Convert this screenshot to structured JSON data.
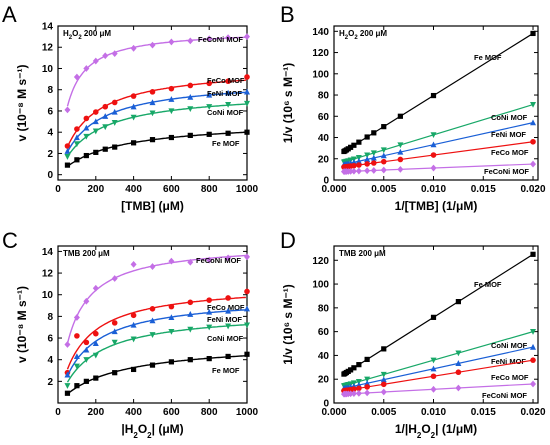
{
  "colors": {
    "Fe MOF": "#000000",
    "FeCo MOF": "#ee1111",
    "FeNi MOF": "#1a5fd6",
    "CoNi MOF": "#18a868",
    "FeCoNi MOF": "#c46fe6"
  },
  "chart_data": [
    {
      "panel": "A",
      "type": "scatter",
      "condition_label": "H2O2 200 μM",
      "xlabel": "[TMB] (μM)",
      "ylabel": "v (10⁻⁸ M s⁻¹)",
      "xlim": [
        0,
        1000
      ],
      "ylim": [
        -0.5,
        14
      ],
      "xticks": [
        0,
        200,
        400,
        600,
        800,
        1000
      ],
      "yticks": [
        0,
        2,
        4,
        6,
        8,
        10,
        12,
        14
      ],
      "x": [
        50,
        100,
        150,
        200,
        250,
        300,
        400,
        500,
        600,
        700,
        800,
        900,
        1000
      ],
      "fit": "michaelis-menten",
      "series": [
        {
          "name": "FeCoNi MOF",
          "marker": "diamond",
          "values": [
            6.1,
            9.2,
            10.0,
            10.7,
            11.2,
            11.4,
            11.9,
            12.2,
            12.5,
            12.6,
            12.8,
            12.9,
            13.0
          ]
        },
        {
          "name": "FeCo MOF",
          "marker": "circle",
          "values": [
            2.7,
            4.3,
            5.3,
            5.9,
            6.4,
            6.8,
            7.4,
            7.8,
            8.1,
            8.4,
            8.6,
            8.8,
            9.2
          ]
        },
        {
          "name": "FeNi MOF",
          "marker": "triangle-up",
          "values": [
            2.2,
            3.5,
            4.4,
            5.0,
            5.5,
            5.9,
            6.4,
            6.8,
            7.1,
            7.3,
            7.5,
            7.7,
            7.8
          ]
        },
        {
          "name": "CoNi MOF",
          "marker": "triangle-down",
          "values": [
            1.7,
            2.9,
            3.6,
            4.1,
            4.5,
            4.9,
            5.4,
            5.8,
            6.0,
            6.2,
            6.4,
            6.6,
            6.7
          ]
        },
        {
          "name": "Fe MOF",
          "marker": "square",
          "values": [
            0.9,
            1.4,
            1.8,
            2.1,
            2.4,
            2.6,
            3.0,
            3.3,
            3.5,
            3.7,
            3.8,
            3.9,
            4.0
          ]
        }
      ]
    },
    {
      "panel": "B",
      "type": "line",
      "condition_label": "H2O2 200 μM",
      "xlabel": "1/[TMB] (1/μM)",
      "ylabel": "1/v (10⁶ s M⁻¹)",
      "xlim": [
        0,
        0.0205
      ],
      "ylim": [
        0,
        145
      ],
      "xticks": [
        0.0,
        0.005,
        0.01,
        0.015,
        0.02
      ],
      "yticks": [
        0,
        20,
        40,
        60,
        80,
        100,
        120,
        140
      ],
      "x": [
        0.001,
        0.00111,
        0.00125,
        0.00143,
        0.00167,
        0.002,
        0.0025,
        0.00333,
        0.004,
        0.005,
        0.00667,
        0.01,
        0.02
      ],
      "series": [
        {
          "name": "Fe MOF",
          "marker": "square",
          "intercept": 21,
          "end": 138
        },
        {
          "name": "CoNi MOF",
          "marker": "triangle-down",
          "intercept": 14,
          "end": 71
        },
        {
          "name": "FeNi MOF",
          "marker": "triangle-up",
          "intercept": 12.5,
          "end": 54
        },
        {
          "name": "FeCo MOF",
          "marker": "circle",
          "intercept": 11,
          "end": 36
        },
        {
          "name": "FeCoNi MOF",
          "marker": "diamond",
          "intercept": 7.5,
          "end": 15
        }
      ]
    },
    {
      "panel": "C",
      "type": "scatter",
      "condition_label": "TMB 200 μM",
      "xlabel": "|H2O2| (μM)",
      "ylabel": "v (10⁻⁸ M s⁻¹)",
      "xlim": [
        0,
        1000
      ],
      "ylim": [
        0,
        14.5
      ],
      "xticks": [
        0,
        200,
        400,
        600,
        800,
        1000
      ],
      "yticks": [
        2,
        4,
        6,
        8,
        10,
        12,
        14
      ],
      "x": [
        50,
        100,
        150,
        200,
        300,
        400,
        500,
        600,
        700,
        800,
        900,
        1000
      ],
      "fit": "michaelis-menten",
      "series": [
        {
          "name": "FeCoNi MOF",
          "marker": "diamond",
          "values": [
            5.4,
            7.9,
            9.4,
            10.6,
            11.5,
            12.8,
            12.6,
            13.1,
            13.0,
            13.2,
            13.4,
            13.5
          ]
        },
        {
          "name": "FeCo MOF",
          "marker": "circle",
          "values": [
            2.8,
            6.2,
            5.6,
            6.4,
            7.4,
            8.1,
            8.7,
            8.9,
            9.3,
            9.5,
            9.7,
            10.3
          ]
        },
        {
          "name": "FeNi MOF",
          "marker": "triangle-up",
          "values": [
            2.6,
            4.3,
            4.9,
            5.5,
            6.6,
            7.2,
            7.6,
            7.9,
            8.2,
            8.4,
            8.5,
            8.7
          ]
        },
        {
          "name": "CoNi MOF",
          "marker": "triangle-down",
          "values": [
            1.6,
            3.4,
            4.0,
            4.4,
            5.6,
            5.9,
            6.3,
            6.6,
            6.8,
            7.0,
            7.1,
            7.2
          ]
        },
        {
          "name": "Fe MOF",
          "marker": "square",
          "values": [
            0.9,
            1.6,
            2.0,
            2.3,
            2.8,
            3.1,
            3.5,
            3.8,
            4.0,
            4.1,
            4.3,
            4.5
          ]
        }
      ]
    },
    {
      "panel": "D",
      "type": "line",
      "condition_label": "TMB 200 μM",
      "xlabel": "1/|H2O2| (1/μM)",
      "ylabel": "1/v (10⁶ s M⁻¹)",
      "xlim": [
        0,
        0.0205
      ],
      "ylim": [
        0,
        132
      ],
      "xticks": [
        0.0,
        0.005,
        0.01,
        0.015,
        0.02
      ],
      "yticks": [
        0,
        20,
        40,
        60,
        80,
        100,
        120
      ],
      "x": [
        0.001,
        0.00111,
        0.00125,
        0.00143,
        0.00167,
        0.002,
        0.0025,
        0.00333,
        0.005,
        0.01,
        0.0125,
        0.02
      ],
      "series": [
        {
          "name": "Fe MOF",
          "marker": "square",
          "intercept": 19,
          "end": 125
        },
        {
          "name": "CoNi MOF",
          "marker": "triangle-down",
          "intercept": 12,
          "end": 60
        },
        {
          "name": "FeNi MOF",
          "marker": "triangle-up",
          "intercept": 10.5,
          "end": 47
        },
        {
          "name": "FeCo MOF",
          "marker": "circle",
          "intercept": 9,
          "end": 36
        },
        {
          "name": "FeCoNi MOF",
          "marker": "diamond",
          "intercept": 7,
          "end": 16
        }
      ]
    }
  ]
}
